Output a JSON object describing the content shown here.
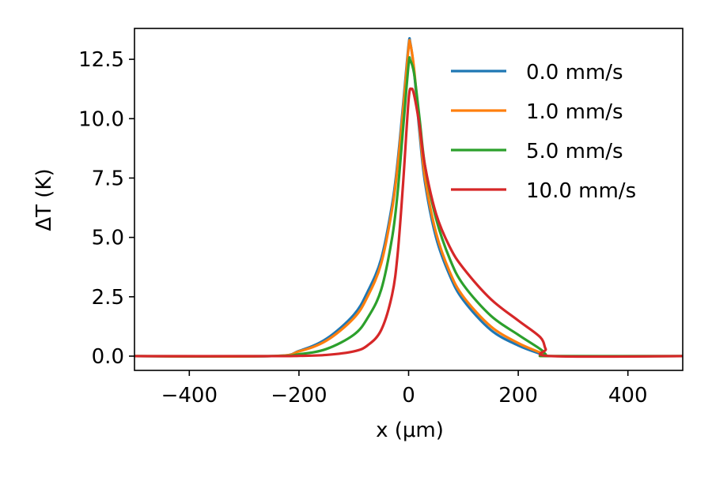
{
  "chart_data": {
    "type": "line",
    "xlabel": "x (μm)",
    "ylabel": "ΔT (K)",
    "xlim": [
      -500,
      500
    ],
    "ylim": [
      -0.6,
      13.8
    ],
    "xticks": [
      -400,
      -200,
      0,
      200,
      400
    ],
    "xtick_labels": [
      "−400",
      "−200",
      "0",
      "200",
      "400"
    ],
    "yticks": [
      0.0,
      2.5,
      5.0,
      7.5,
      10.0,
      12.5
    ],
    "ytick_labels": [
      "0.0",
      "2.5",
      "5.0",
      "7.5",
      "10.0",
      "12.5"
    ],
    "grid": false,
    "legend_position": "top-right",
    "series": [
      {
        "name": "0.0 mm/s",
        "color": "#1f77b4",
        "x": [
          -500,
          -250,
          -200,
          -150,
          -100,
          -75,
          -50,
          -30,
          -20,
          -10,
          0,
          3,
          10,
          20,
          30,
          50,
          75,
          100,
          150,
          200,
          240,
          250,
          260,
          500
        ],
        "y": [
          0,
          0,
          0.22,
          0.73,
          1.74,
          2.7,
          4.1,
          6.4,
          8.2,
          10.6,
          13.1,
          13.2,
          12.0,
          9.4,
          7.3,
          5.0,
          3.4,
          2.35,
          1.1,
          0.45,
          0.1,
          0.02,
          0,
          0
        ]
      },
      {
        "name": "1.0 mm/s",
        "color": "#ff7f0e",
        "x": [
          -500,
          -250,
          -200,
          -150,
          -100,
          -75,
          -50,
          -30,
          -20,
          -10,
          0,
          3,
          10,
          20,
          30,
          50,
          75,
          100,
          150,
          200,
          240,
          250,
          260,
          500
        ],
        "y": [
          0,
          0,
          0.2,
          0.65,
          1.6,
          2.5,
          3.9,
          6.2,
          8.0,
          10.4,
          13.0,
          13.15,
          12.1,
          9.6,
          7.5,
          5.2,
          3.55,
          2.5,
          1.25,
          0.55,
          0.15,
          0.03,
          0,
          0
        ]
      },
      {
        "name": "5.0 mm/s",
        "color": "#2ca02c",
        "x": [
          -500,
          -250,
          -200,
          -150,
          -100,
          -75,
          -50,
          -30,
          -20,
          -10,
          0,
          3,
          10,
          20,
          30,
          50,
          75,
          100,
          150,
          200,
          240,
          250,
          260,
          500
        ],
        "y": [
          0,
          0,
          0.08,
          0.3,
          0.9,
          1.6,
          2.8,
          5.0,
          6.9,
          9.6,
          12.3,
          12.45,
          11.9,
          10.0,
          8.0,
          5.8,
          4.1,
          3.0,
          1.7,
          0.9,
          0.3,
          0.08,
          0,
          0
        ]
      },
      {
        "name": "10.0 mm/s",
        "color": "#d62728",
        "x": [
          -500,
          -250,
          -200,
          -150,
          -100,
          -75,
          -50,
          -30,
          -20,
          -10,
          0,
          5,
          10,
          20,
          30,
          50,
          75,
          100,
          150,
          200,
          240,
          250,
          260,
          500
        ],
        "y": [
          0,
          0,
          0.01,
          0.05,
          0.2,
          0.45,
          1.1,
          2.6,
          4.3,
          7.3,
          10.8,
          11.25,
          11.0,
          9.7,
          8.0,
          6.0,
          4.6,
          3.7,
          2.4,
          1.5,
          0.8,
          0.3,
          0,
          0
        ]
      }
    ]
  }
}
